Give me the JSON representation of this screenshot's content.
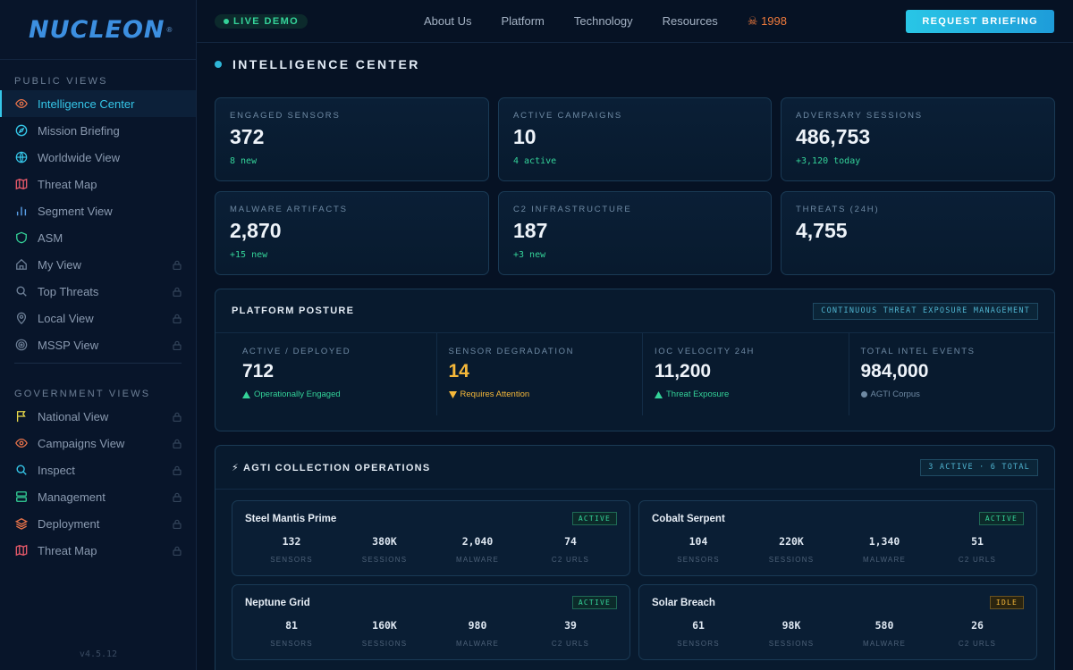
{
  "brand": {
    "name": "NUCLEON",
    "mark": "®"
  },
  "sidebar": {
    "public_section": "PUBLIC VIEWS",
    "public_items": [
      {
        "label": "Intelligence Center",
        "icon": "eye-icon",
        "color": "#e8734a",
        "locked": false,
        "active": true
      },
      {
        "label": "Mission Briefing",
        "icon": "compass-icon",
        "color": "#35c6e8",
        "locked": false
      },
      {
        "label": "Worldwide View",
        "icon": "globe-icon",
        "color": "#35c6e8",
        "locked": false
      },
      {
        "label": "Threat Map",
        "icon": "map-icon",
        "color": "#e85a6a",
        "locked": false
      },
      {
        "label": "Segment View",
        "icon": "bar-chart-icon",
        "color": "#5aa0e8",
        "locked": false
      },
      {
        "label": "ASM",
        "icon": "shield-icon",
        "color": "#34d399",
        "locked": false
      },
      {
        "label": "My View",
        "icon": "home-icon",
        "color": "#6d7f96",
        "locked": true
      },
      {
        "label": "Top Threats",
        "icon": "search-icon",
        "color": "#6d7f96",
        "locked": true
      },
      {
        "label": "Local View",
        "icon": "pin-icon",
        "color": "#6d7f96",
        "locked": true
      },
      {
        "label": "MSSP View",
        "icon": "target-icon",
        "color": "#6d7f96",
        "locked": true
      }
    ],
    "gov_section": "GOVERNMENT VIEWS",
    "gov_items": [
      {
        "label": "National View",
        "icon": "flag-icon",
        "color": "#e8d84a",
        "locked": true
      },
      {
        "label": "Campaigns View",
        "icon": "eye-icon",
        "color": "#e8734a",
        "locked": true
      },
      {
        "label": "Inspect",
        "icon": "search-icon",
        "color": "#35c6e8",
        "locked": true
      },
      {
        "label": "Management",
        "icon": "server-icon",
        "color": "#34d399",
        "locked": true
      },
      {
        "label": "Deployment",
        "icon": "layers-icon",
        "color": "#e8734a",
        "locked": true
      },
      {
        "label": "Threat Map",
        "icon": "map-icon",
        "color": "#e85a6a",
        "locked": true
      }
    ],
    "version": "v4.5.12"
  },
  "topbar": {
    "live_label": "LIVE DEMO",
    "nav": [
      "About Us",
      "Platform",
      "Technology",
      "Resources"
    ],
    "counter": "☠ 1998",
    "cta": "REQUEST BRIEFING"
  },
  "page": {
    "title": "INTELLIGENCE CENTER"
  },
  "stats": [
    {
      "label": "ENGAGED SENSORS",
      "value": "372",
      "sub": "8 new"
    },
    {
      "label": "ACTIVE CAMPAIGNS",
      "value": "10",
      "sub": "4 active"
    },
    {
      "label": "ADVERSARY SESSIONS",
      "value": "486,753",
      "sub": "+3,120 today"
    },
    {
      "label": "MALWARE ARTIFACTS",
      "value": "2,870",
      "sub": "+15 new"
    },
    {
      "label": "C2 INFRASTRUCTURE",
      "value": "187",
      "sub": "+3 new"
    },
    {
      "label": "THREATS (24H)",
      "value": "4,755",
      "sub": ""
    }
  ],
  "posture": {
    "title": "PLATFORM POSTURE",
    "tag": "CONTINUOUS THREAT EXPOSURE MANAGEMENT",
    "cells": [
      {
        "label": "ACTIVE / DEPLOYED",
        "value": "712",
        "sub": "Operationally Engaged",
        "kind": "up"
      },
      {
        "label": "SENSOR DEGRADATION",
        "value": "14",
        "sub": "Requires Attention",
        "kind": "warn"
      },
      {
        "label": "IOC VELOCITY 24H",
        "value": "11,200",
        "sub": "Threat Exposure",
        "kind": "up"
      },
      {
        "label": "TOTAL INTEL EVENTS",
        "value": "984,000",
        "sub": "AGTI Corpus",
        "kind": "grey"
      }
    ]
  },
  "ops": {
    "title": "⚡ AGTI COLLECTION OPERATIONS",
    "tag": "3 ACTIVE · 6 TOTAL",
    "metric_labels": [
      "SENSORS",
      "SESSIONS",
      "MALWARE",
      "C2 URLS"
    ],
    "cards": [
      {
        "name": "Steel Mantis Prime",
        "status": "ACTIVE",
        "values": [
          "132",
          "380K",
          "2,040",
          "74"
        ]
      },
      {
        "name": "Cobalt Serpent",
        "status": "ACTIVE",
        "values": [
          "104",
          "220K",
          "1,340",
          "51"
        ]
      },
      {
        "name": "Neptune Grid",
        "status": "ACTIVE",
        "values": [
          "81",
          "160K",
          "980",
          "39"
        ]
      },
      {
        "name": "Solar Breach",
        "status": "IDLE",
        "values": [
          "61",
          "98K",
          "580",
          "26"
        ]
      }
    ]
  },
  "colors": {
    "accent": "#35c6e8",
    "good": "#34d399",
    "warn": "#f5b83a",
    "bg": "#061224"
  }
}
